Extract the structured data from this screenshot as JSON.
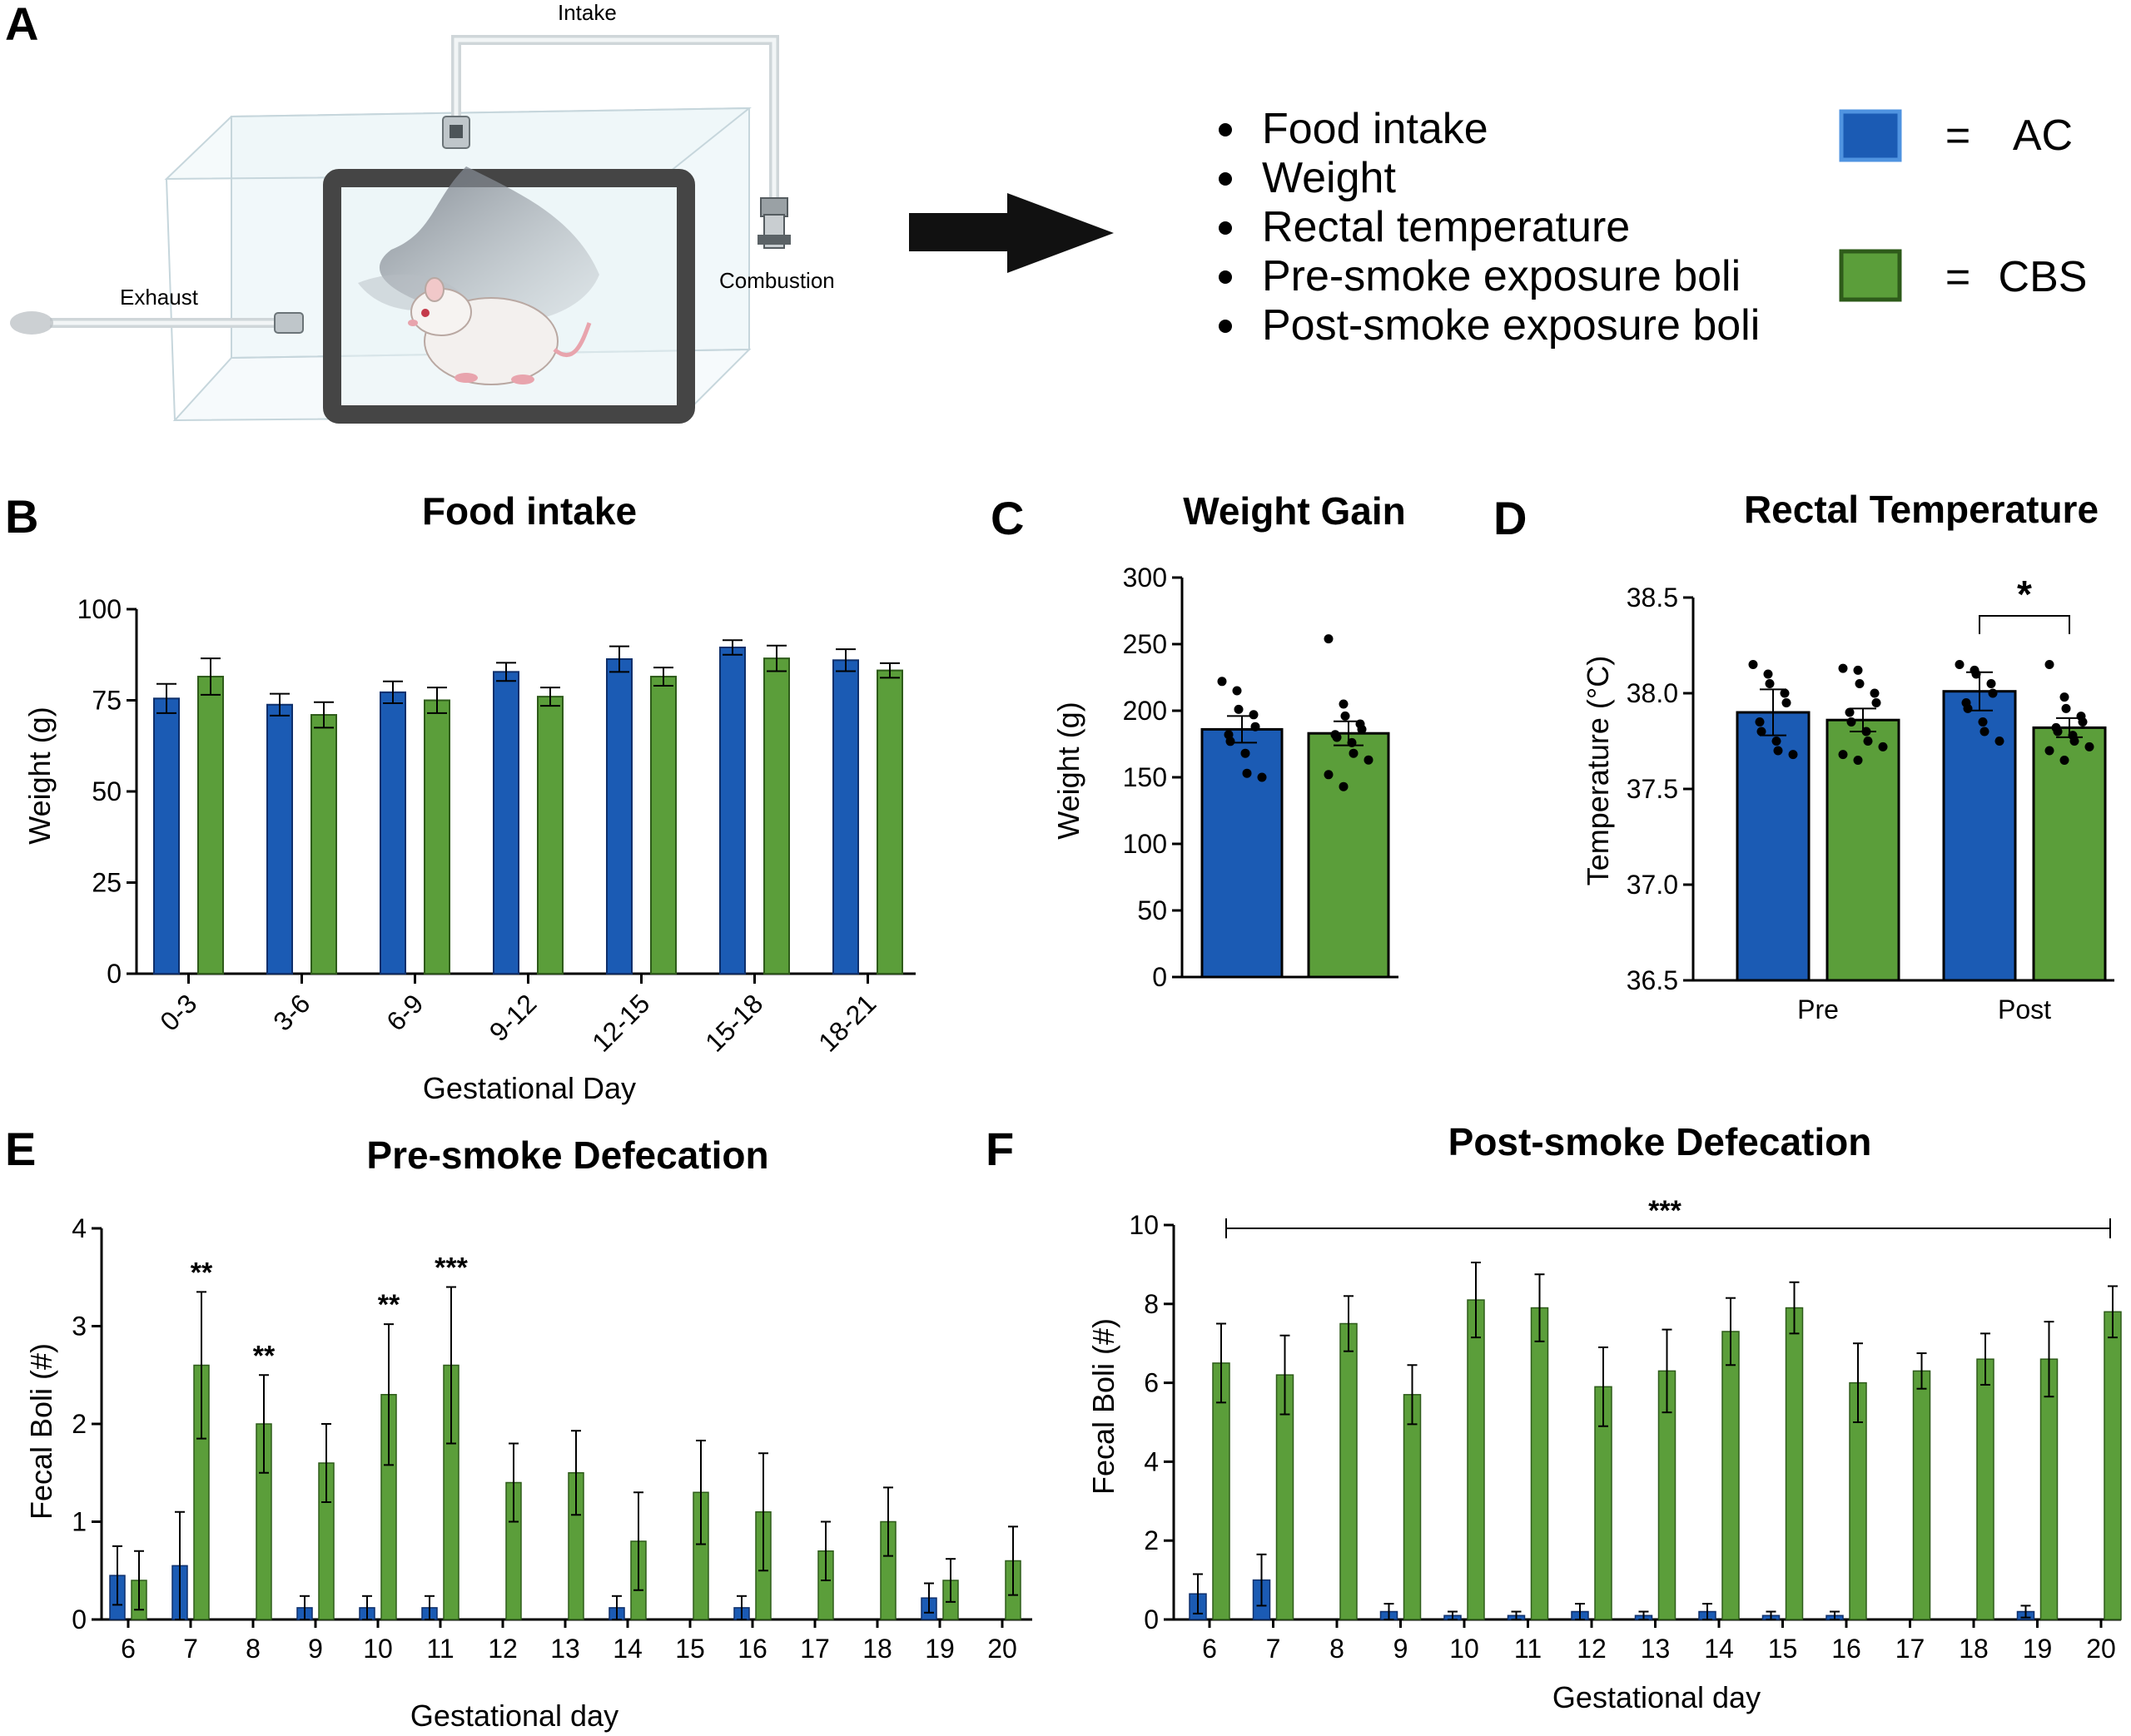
{
  "colors": {
    "ac": "#1b5bb4",
    "cbs": "#5b9e3a",
    "ac_stroke": "#0e2f6b",
    "cbs_stroke": "#2e5b1a"
  },
  "panel_letters": {
    "a": "A",
    "b": "B",
    "c": "C",
    "d": "D",
    "e": "E",
    "f": "F"
  },
  "diagram": {
    "intake": "Intake",
    "exhaust": "Exhaust",
    "combustion": "Combustion"
  },
  "measures": [
    "Food intake",
    "Weight",
    "Rectal temperature",
    "Pre-smoke exposure boli",
    "Post-smoke exposure boli"
  ],
  "legend": {
    "eq": "=",
    "ac": "AC",
    "cbs": "CBS"
  },
  "chart_data": [
    {
      "id": "B",
      "type": "bar",
      "title": "Food intake",
      "xlabel": "Gestational Day",
      "ylabel": "Weight (g)",
      "ylim": [
        0,
        100
      ],
      "yticks": [
        "0",
        "25",
        "50",
        "75",
        "100"
      ],
      "categories": [
        "0-3",
        "3-6",
        "6-9",
        "9-12",
        "12-15",
        "15-18",
        "18-21"
      ],
      "series": [
        {
          "name": "AC",
          "values": [
            75.5,
            73.8,
            77.2,
            82.8,
            86.3,
            89.5,
            86.0
          ],
          "err": [
            4.0,
            3.0,
            3.0,
            2.5,
            3.5,
            2.0,
            3.0
          ]
        },
        {
          "name": "CBS",
          "values": [
            81.5,
            71.0,
            75.0,
            76.0,
            81.5,
            86.5,
            83.2
          ],
          "err": [
            5.0,
            3.5,
            3.5,
            2.5,
            2.5,
            3.5,
            2.0
          ]
        }
      ]
    },
    {
      "id": "C",
      "type": "bar",
      "title": "Weight Gain",
      "ylabel": "Weight (g)",
      "ylim": [
        0,
        300
      ],
      "yticks": [
        "0",
        "50",
        "100",
        "150",
        "200",
        "250",
        "300"
      ],
      "series": [
        {
          "name": "AC",
          "value": 186,
          "err": 10,
          "points": [
            222,
            215,
            201,
            197,
            188,
            182,
            177,
            168,
            153,
            150
          ]
        },
        {
          "name": "CBS",
          "value": 183,
          "err": 9,
          "points": [
            254,
            205,
            196,
            190,
            186,
            182,
            180,
            176,
            168,
            163,
            152,
            143
          ]
        }
      ]
    },
    {
      "id": "D",
      "type": "bar",
      "title": "Rectal Temperature",
      "ylabel": "Temperature (°C)",
      "ylim": [
        36.5,
        38.5
      ],
      "yticks": [
        "36.5",
        "37.0",
        "37.5",
        "38.0",
        "38.5"
      ],
      "categories": [
        "Pre",
        "Post"
      ],
      "series": [
        {
          "name": "AC",
          "values": [
            37.9,
            38.01
          ],
          "err": [
            0.12,
            0.1
          ],
          "points": [
            [
              38.15,
              38.1,
              38.05,
              38.0,
              37.95,
              37.85,
              37.8,
              37.75,
              37.7,
              37.68
            ],
            [
              38.15,
              38.12,
              38.1,
              38.05,
              38.0,
              37.95,
              37.92,
              37.85,
              37.8,
              37.75
            ]
          ]
        },
        {
          "name": "CBS",
          "values": [
            37.86,
            37.82
          ],
          "err": [
            0.06,
            0.05
          ],
          "points": [
            [
              38.13,
              38.12,
              38.05,
              38.0,
              37.95,
              37.9,
              37.85,
              37.8,
              37.75,
              37.72,
              37.68,
              37.65
            ],
            [
              38.15,
              37.98,
              37.92,
              37.88,
              37.85,
              37.82,
              37.8,
              37.78,
              37.75,
              37.72,
              37.7,
              37.65
            ]
          ]
        }
      ],
      "significance": "*"
    },
    {
      "id": "E",
      "type": "bar",
      "title": "Pre-smoke Defecation",
      "xlabel": "Gestational day",
      "ylabel": "Fecal Boli (#)",
      "ylim": [
        0,
        4
      ],
      "yticks": [
        "0",
        "1",
        "2",
        "3",
        "4"
      ],
      "categories": [
        "6",
        "7",
        "8",
        "9",
        "10",
        "11",
        "12",
        "13",
        "14",
        "15",
        "16",
        "17",
        "18",
        "19",
        "20"
      ],
      "series": [
        {
          "name": "AC",
          "values": [
            0.45,
            0.55,
            0,
            0.12,
            0.12,
            0.12,
            0,
            0,
            0.12,
            0,
            0.12,
            0,
            0,
            0.22,
            0
          ],
          "err": [
            0.3,
            0.55,
            0,
            0.12,
            0.12,
            0.12,
            0,
            0,
            0.12,
            0,
            0.12,
            0,
            0,
            0.15,
            0
          ]
        },
        {
          "name": "CBS",
          "values": [
            0.4,
            2.6,
            2.0,
            1.6,
            2.3,
            2.6,
            1.4,
            1.5,
            0.8,
            1.3,
            1.1,
            0.7,
            1.0,
            0.4,
            0.6
          ],
          "err": [
            0.3,
            0.75,
            0.5,
            0.4,
            0.72,
            0.8,
            0.4,
            0.43,
            0.5,
            0.53,
            0.6,
            0.3,
            0.35,
            0.22,
            0.35
          ]
        }
      ],
      "significance": [
        "",
        "**",
        "**",
        "",
        "**",
        "***",
        "",
        "",
        "",
        "",
        "",
        "",
        "",
        "",
        ""
      ]
    },
    {
      "id": "F",
      "type": "bar",
      "title": "Post-smoke Defecation",
      "xlabel": "Gestational day",
      "ylabel": "Fecal Boli (#)",
      "ylim": [
        0,
        10
      ],
      "yticks": [
        "0",
        "2",
        "4",
        "6",
        "8",
        "10"
      ],
      "categories": [
        "6",
        "7",
        "8",
        "9",
        "10",
        "11",
        "12",
        "13",
        "14",
        "15",
        "16",
        "17",
        "18",
        "19",
        "20"
      ],
      "series": [
        {
          "name": "AC",
          "values": [
            0.65,
            1.0,
            0,
            0.2,
            0.1,
            0.1,
            0.2,
            0.1,
            0.2,
            0.1,
            0.1,
            0,
            0,
            0.2,
            0
          ],
          "err": [
            0.5,
            0.65,
            0,
            0.2,
            0.1,
            0.1,
            0.2,
            0.1,
            0.2,
            0.1,
            0.1,
            0,
            0,
            0.15,
            0
          ]
        },
        {
          "name": "CBS",
          "values": [
            6.5,
            6.2,
            7.5,
            5.7,
            8.1,
            7.9,
            5.9,
            6.3,
            7.3,
            7.9,
            6.0,
            6.3,
            6.6,
            6.6,
            7.8
          ],
          "err": [
            1.0,
            1.0,
            0.7,
            0.75,
            0.95,
            0.85,
            1.0,
            1.05,
            0.85,
            0.65,
            1.0,
            0.45,
            0.65,
            0.95,
            0.65
          ]
        }
      ],
      "significance": "***"
    }
  ]
}
